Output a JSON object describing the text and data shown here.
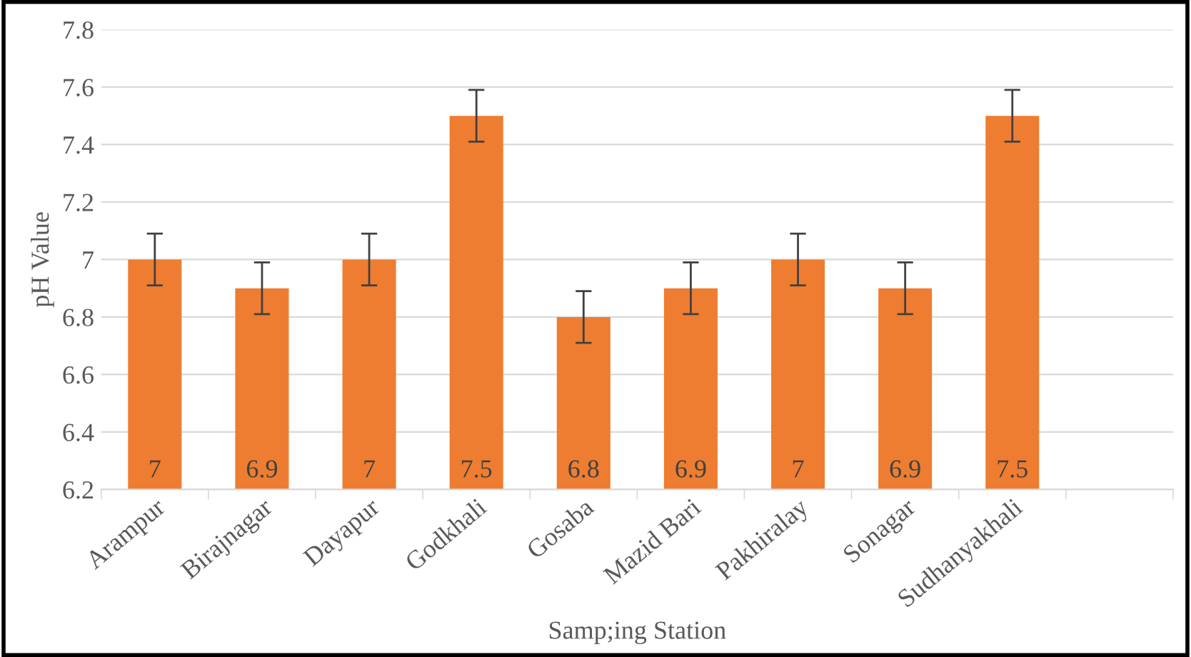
{
  "chart_data": {
    "type": "bar",
    "xlabel": "Samp;ing Station",
    "ylabel": "pH Value",
    "categories": [
      "Arampur",
      "Birajnagar",
      "Dayapur",
      "Godkhali",
      "Gosaba",
      "Mazid Bari",
      "Pakhiralay",
      "Sonagar",
      "Sudhanyakhali",
      null
    ],
    "values": [
      7,
      6.9,
      7,
      7.5,
      6.8,
      6.9,
      7,
      6.9,
      7.5,
      null
    ],
    "errors": [
      0.09,
      0.09,
      0.09,
      0.09,
      0.09,
      0.09,
      0.09,
      0.09,
      0.09,
      null
    ],
    "color": "#ee7d31",
    "ylim": [
      6.2,
      7.8
    ],
    "yticks": [
      6.2,
      6.4,
      6.6,
      6.8,
      7,
      7.2,
      7.4,
      7.6,
      7.8
    ],
    "grid": "y",
    "data_labels": true
  }
}
